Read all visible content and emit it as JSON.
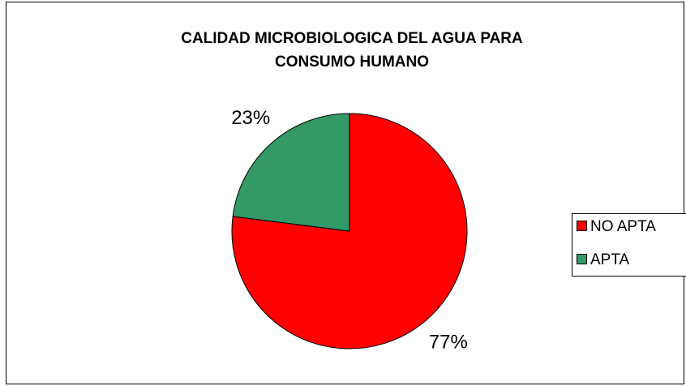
{
  "chart_data": {
    "type": "pie",
    "title": [
      "CALIDAD MICROBIOLOGICA DEL AGUA PARA",
      "CONSUMO HUMANO"
    ],
    "categories": [
      "NO APTA",
      "APTA"
    ],
    "values": [
      77,
      23
    ],
    "value_labels": [
      "77%",
      "23%"
    ],
    "colors": [
      "#ff0000",
      "#339966"
    ],
    "legend": "right"
  }
}
